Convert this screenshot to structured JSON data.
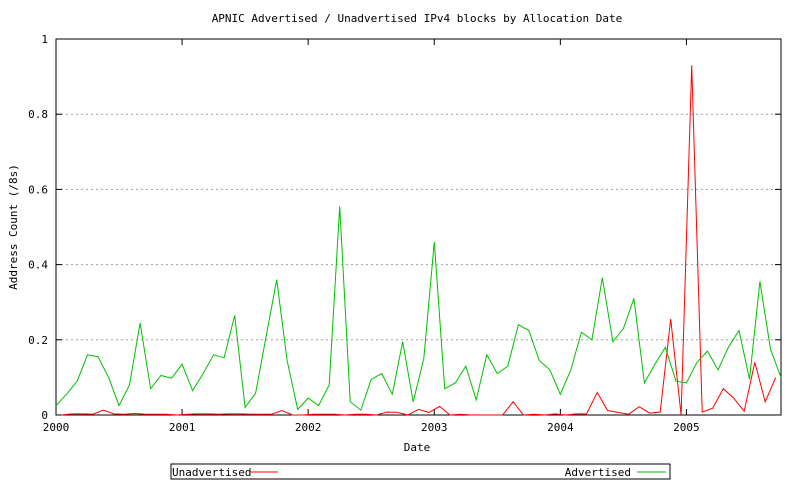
{
  "chart_data": {
    "type": "line",
    "title": "APNIC Advertised / Unadvertised IPv4 blocks by Allocation Date",
    "xlabel": "Date",
    "ylabel": "Address Count (/8s)",
    "xlim": [
      2000.0,
      2005.75
    ],
    "ylim": [
      0,
      1
    ],
    "x_ticks": [
      {
        "v": 2000,
        "label": "2000"
      },
      {
        "v": 2001,
        "label": "2001"
      },
      {
        "v": 2002,
        "label": "2002"
      },
      {
        "v": 2003,
        "label": "2003"
      },
      {
        "v": 2004,
        "label": "2004"
      },
      {
        "v": 2005,
        "label": "2005"
      }
    ],
    "y_ticks": [
      {
        "v": 0,
        "label": "0"
      },
      {
        "v": 0.2,
        "label": "0.2"
      },
      {
        "v": 0.4,
        "label": "0.4"
      },
      {
        "v": 0.6,
        "label": "0.6"
      },
      {
        "v": 0.8,
        "label": "0.8"
      },
      {
        "v": 1,
        "label": "1"
      }
    ],
    "grid": "horizontal-dotted",
    "legend_position": "bottom",
    "series": [
      {
        "name": "Unadvertised",
        "color": "#ff0000",
        "x": [
          2000.042,
          2000.125,
          2000.208,
          2000.292,
          2000.375,
          2000.458,
          2000.542,
          2000.625,
          2000.708,
          2000.792,
          2000.875,
          2000.958,
          2001.042,
          2001.125,
          2001.208,
          2001.292,
          2001.375,
          2001.458,
          2001.542,
          2001.625,
          2001.708,
          2001.792,
          2001.875,
          2001.958,
          2002.042,
          2002.125,
          2002.208,
          2002.292,
          2002.375,
          2002.458,
          2002.542,
          2002.625,
          2002.708,
          2002.792,
          2002.875,
          2002.958,
          2003.042,
          2003.125,
          2003.208,
          2003.292,
          2003.375,
          2003.458,
          2003.542,
          2003.625,
          2003.708,
          2003.792,
          2003.875,
          2003.958,
          2004.042,
          2004.125,
          2004.208,
          2004.292,
          2004.375,
          2004.458,
          2004.542,
          2004.625,
          2004.708,
          2004.792,
          2004.875,
          2004.958,
          2005.042,
          2005.125,
          2005.208,
          2005.292,
          2005.375,
          2005.458,
          2005.542,
          2005.625,
          2005.708
        ],
        "y": [
          0.0,
          0.003,
          0.003,
          0.002,
          0.013,
          0.003,
          0.002,
          0.004,
          0.002,
          0.002,
          0.002,
          0.0,
          0.002,
          0.003,
          0.003,
          0.002,
          0.003,
          0.003,
          0.002,
          0.002,
          0.002,
          0.012,
          0.0,
          0.0,
          0.002,
          0.002,
          0.002,
          0.0,
          0.002,
          0.002,
          0.0,
          0.008,
          0.007,
          0.0,
          0.015,
          0.007,
          0.023,
          0.0,
          0.002,
          0.0,
          0.0,
          0.0,
          0.0,
          0.035,
          0.0,
          0.002,
          0.0,
          0.003,
          0.0,
          0.003,
          0.003,
          0.06,
          0.012,
          0.007,
          0.002,
          0.022,
          0.005,
          0.008,
          0.255,
          0.0,
          0.93,
          0.008,
          0.018,
          0.07,
          0.045,
          0.01,
          0.14,
          0.035,
          0.1
        ]
      },
      {
        "name": "Advertised",
        "color": "#00c000",
        "x": [
          2000.0,
          2000.083,
          2000.167,
          2000.25,
          2000.333,
          2000.417,
          2000.5,
          2000.583,
          2000.667,
          2000.75,
          2000.833,
          2000.917,
          2001.0,
          2001.083,
          2001.167,
          2001.25,
          2001.333,
          2001.417,
          2001.5,
          2001.583,
          2001.667,
          2001.75,
          2001.833,
          2001.917,
          2002.0,
          2002.083,
          2002.167,
          2002.25,
          2002.333,
          2002.417,
          2002.5,
          2002.583,
          2002.667,
          2002.75,
          2002.833,
          2002.917,
          2003.0,
          2003.083,
          2003.167,
          2003.25,
          2003.333,
          2003.417,
          2003.5,
          2003.583,
          2003.667,
          2003.75,
          2003.833,
          2003.917,
          2004.0,
          2004.083,
          2004.167,
          2004.25,
          2004.333,
          2004.417,
          2004.5,
          2004.583,
          2004.667,
          2004.75,
          2004.833,
          2004.917,
          2005.0,
          2005.083,
          2005.167,
          2005.25,
          2005.333,
          2005.417,
          2005.5,
          2005.583,
          2005.667,
          2005.75
        ],
        "y": [
          0.025,
          0.055,
          0.09,
          0.16,
          0.155,
          0.1,
          0.025,
          0.08,
          0.245,
          0.07,
          0.105,
          0.098,
          0.135,
          0.065,
          0.11,
          0.16,
          0.152,
          0.265,
          0.02,
          0.058,
          0.21,
          0.36,
          0.145,
          0.015,
          0.045,
          0.025,
          0.08,
          0.555,
          0.035,
          0.013,
          0.095,
          0.11,
          0.055,
          0.195,
          0.035,
          0.15,
          0.46,
          0.07,
          0.085,
          0.13,
          0.04,
          0.16,
          0.11,
          0.13,
          0.24,
          0.225,
          0.145,
          0.12,
          0.055,
          0.12,
          0.22,
          0.2,
          0.365,
          0.195,
          0.23,
          0.31,
          0.085,
          0.135,
          0.18,
          0.09,
          0.085,
          0.14,
          0.17,
          0.12,
          0.18,
          0.225,
          0.095,
          0.355,
          0.175,
          0.1
        ]
      }
    ]
  }
}
